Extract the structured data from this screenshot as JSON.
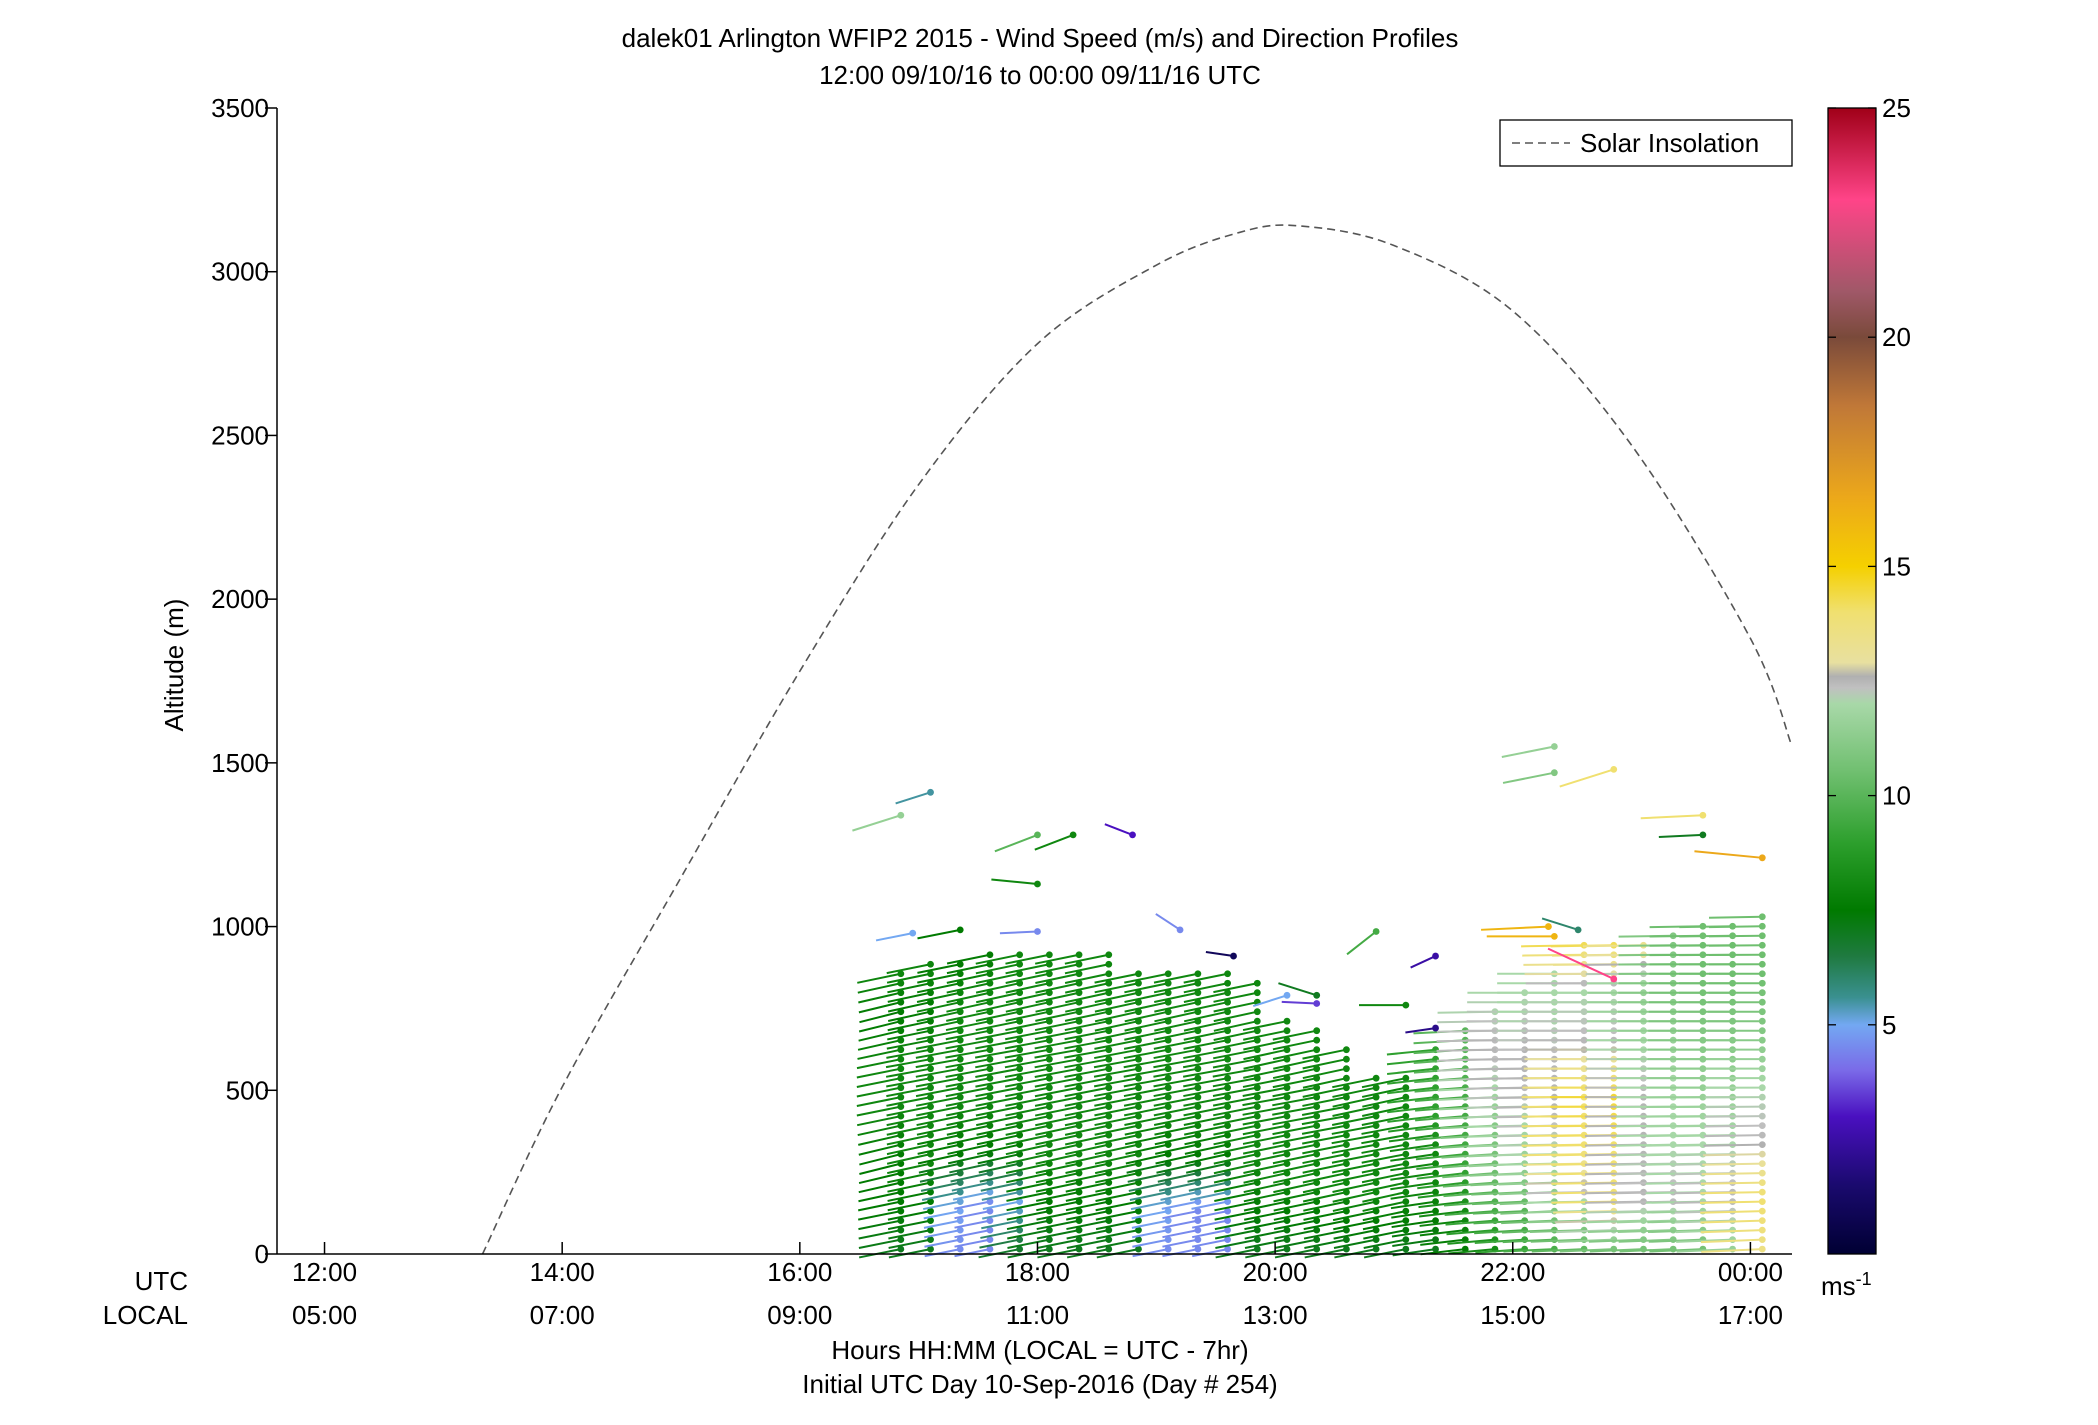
{
  "chart_data": {
    "type": "wind_barb_profile",
    "title": "dalek01 Arlington WFIP2 2015 - Wind Speed (m/s) and Direction Profiles",
    "subtitle": "12:00 09/10/16 to 00:00 09/11/16  UTC",
    "ylabel": "Altitude (m)",
    "xlabel": "Hours HH:MM  (LOCAL = UTC - 7hr)",
    "xlabel2": "Initial UTC Day 10-Sep-2016 (Day # 254)",
    "utc_row_label": "UTC",
    "local_row_label": "LOCAL",
    "xlim_hours": [
      11.6,
      24.35
    ],
    "ylim": [
      0,
      3500
    ],
    "y_ticks": [
      0,
      500,
      1000,
      1500,
      2000,
      2500,
      3000,
      3500
    ],
    "x_ticks": [
      {
        "hour": 12,
        "utc": "12:00",
        "local": "05:00"
      },
      {
        "hour": 14,
        "utc": "14:00",
        "local": "07:00"
      },
      {
        "hour": 16,
        "utc": "16:00",
        "local": "09:00"
      },
      {
        "hour": 18,
        "utc": "18:00",
        "local": "11:00"
      },
      {
        "hour": 20,
        "utc": "20:00",
        "local": "13:00"
      },
      {
        "hour": 22,
        "utc": "22:00",
        "local": "15:00"
      },
      {
        "hour": 24,
        "utc": "00:00",
        "local": "17:00"
      }
    ],
    "legend": {
      "label": "Solar Insolation",
      "placement": "top-right",
      "line_style": "dashed",
      "color": "#555555"
    },
    "solar_insolation_curve": [
      [
        13.33,
        0
      ],
      [
        14.0,
        510
      ],
      [
        15.0,
        1150
      ],
      [
        16.0,
        1780
      ],
      [
        17.0,
        2350
      ],
      [
        18.0,
        2780
      ],
      [
        19.0,
        3020
      ],
      [
        19.7,
        3120
      ],
      [
        20.2,
        3140
      ],
      [
        21.0,
        3080
      ],
      [
        22.0,
        2880
      ],
      [
        23.0,
        2470
      ],
      [
        24.0,
        1880
      ],
      [
        24.35,
        1550
      ]
    ],
    "colorbar": {
      "range": [
        0,
        25
      ],
      "ticks": [
        5,
        10,
        15,
        20,
        25
      ],
      "unit_label": "ms",
      "unit_exponent": "-1",
      "stops": [
        [
          0,
          "#000033"
        ],
        [
          1.5,
          "#1a0a6e"
        ],
        [
          3,
          "#4a10c0"
        ],
        [
          4,
          "#7a6ae8"
        ],
        [
          5,
          "#73a8f2"
        ],
        [
          5.6,
          "#3a9090"
        ],
        [
          6.5,
          "#1f7a40"
        ],
        [
          7.5,
          "#007a00"
        ],
        [
          9,
          "#2ea02e"
        ],
        [
          10.5,
          "#6fbf6f"
        ],
        [
          12,
          "#a8d8a8"
        ],
        [
          12.35,
          "#c0c0c0"
        ],
        [
          12.6,
          "#b0b0b0"
        ],
        [
          12.9,
          "#e8e0a0"
        ],
        [
          14,
          "#f0e070"
        ],
        [
          15,
          "#f5d000"
        ],
        [
          16.5,
          "#eca81a"
        ],
        [
          18.5,
          "#c07838"
        ],
        [
          20,
          "#7a4a3a"
        ],
        [
          21,
          "#a05868"
        ],
        [
          23,
          "#ff4488"
        ],
        [
          25,
          "#a00018"
        ]
      ]
    },
    "profiles": [
      {
        "t": 16.85,
        "top": 880,
        "speed": [
          7.0,
          7.5,
          7.5,
          8.0,
          8.0,
          7.5,
          8.0
        ],
        "dir": [
          250,
          250,
          245,
          250,
          250,
          245,
          250
        ]
      },
      {
        "t": 17.1,
        "top": 900,
        "speed": [
          7.0,
          7.5,
          8.0,
          8.0,
          8.0,
          7.5,
          8.0
        ],
        "dir": [
          250,
          250,
          248,
          250,
          252,
          248,
          250
        ]
      },
      {
        "t": 17.35,
        "top": 900,
        "speed": [
          4.5,
          5.0,
          7.5,
          8.0,
          8.0,
          8.0,
          7.5
        ],
        "dir": [
          250,
          250,
          248,
          250,
          252,
          248,
          250
        ]
      },
      {
        "t": 17.6,
        "top": 940,
        "speed": [
          4.5,
          4.5,
          7.5,
          8.0,
          8.0,
          8.0,
          7.5
        ],
        "dir": [
          250,
          250,
          248,
          250,
          252,
          248,
          250
        ]
      },
      {
        "t": 17.85,
        "top": 940,
        "speed": [
          7.0,
          5.0,
          7.5,
          8.0,
          8.0,
          8.0,
          8.0
        ],
        "dir": [
          250,
          250,
          248,
          250,
          252,
          248,
          250
        ]
      },
      {
        "t": 18.1,
        "top": 940,
        "speed": [
          7.0,
          7.5,
          8.0,
          8.0,
          8.0,
          8.0,
          8.0
        ],
        "dir": [
          250,
          250,
          248,
          250,
          252,
          248,
          250
        ]
      },
      {
        "t": 18.35,
        "top": 940,
        "speed": [
          7.0,
          7.5,
          8.0,
          8.0,
          8.0,
          8.0,
          8.0
        ],
        "dir": [
          250,
          250,
          248,
          250,
          252,
          248,
          250
        ]
      },
      {
        "t": 18.6,
        "top": 940,
        "speed": [
          7.0,
          7.5,
          8.0,
          8.0,
          8.0,
          8.0,
          8.0
        ],
        "dir": [
          250,
          250,
          248,
          250,
          252,
          248,
          250
        ]
      },
      {
        "t": 18.85,
        "top": 880,
        "speed": [
          7.0,
          7.5,
          8.0,
          8.0,
          8.0,
          8.0,
          8.0
        ],
        "dir": [
          250,
          250,
          248,
          250,
          252,
          248,
          250
        ]
      },
      {
        "t": 19.1,
        "top": 880,
        "speed": [
          4.5,
          5.0,
          7.5,
          8.0,
          8.0,
          8.0,
          8.0
        ],
        "dir": [
          250,
          250,
          248,
          250,
          252,
          248,
          250
        ]
      },
      {
        "t": 19.35,
        "top": 880,
        "speed": [
          4.5,
          4.5,
          7.5,
          8.0,
          8.0,
          8.0,
          8.0
        ],
        "dir": [
          250,
          250,
          248,
          250,
          252,
          248,
          250
        ]
      },
      {
        "t": 19.6,
        "top": 880,
        "speed": [
          4.5,
          4.5,
          7.5,
          8.0,
          8.0,
          8.0,
          8.0
        ],
        "dir": [
          250,
          250,
          248,
          250,
          252,
          248,
          250
        ]
      },
      {
        "t": 19.85,
        "top": 850,
        "speed": [
          7.0,
          7.5,
          8.0,
          8.0,
          8.0,
          8.0,
          8.0
        ],
        "dir": [
          250,
          250,
          248,
          250,
          252,
          248,
          250
        ]
      },
      {
        "t": 20.1,
        "top": 720,
        "speed": [
          7.0,
          7.5,
          8.0,
          8.0,
          8.0,
          8.0,
          8.0
        ],
        "dir": [
          250,
          250,
          248,
          250,
          252,
          248,
          250
        ]
      },
      {
        "t": 20.35,
        "top": 700,
        "speed": [
          7.0,
          7.5,
          8.0,
          8.0,
          8.0,
          8.0,
          8.0
        ],
        "dir": [
          250,
          250,
          248,
          250,
          252,
          248,
          250
        ]
      },
      {
        "t": 20.6,
        "top": 640,
        "speed": [
          7.0,
          7.5,
          8.0,
          8.0,
          8.0,
          8.0,
          8.0
        ],
        "dir": [
          250,
          250,
          248,
          250,
          252,
          248,
          250
        ]
      },
      {
        "t": 20.85,
        "top": 560,
        "speed": [
          7.0,
          7.5,
          8.0,
          8.0,
          8.0,
          8.0,
          8.0
        ],
        "dir": [
          250,
          250,
          248,
          250,
          252,
          248,
          250
        ]
      },
      {
        "t": 21.1,
        "top": 560,
        "speed": [
          7.0,
          7.5,
          8.0,
          8.0,
          8.0,
          8.0,
          8.0
        ],
        "dir": [
          250,
          250,
          248,
          250,
          252,
          248,
          250
        ]
      },
      {
        "t": 21.35,
        "top": 640,
        "speed": [
          7.0,
          7.5,
          8.0,
          8.0,
          9.0,
          9.0,
          9.0
        ],
        "dir": [
          255,
          255,
          255,
          255,
          258,
          258,
          260
        ]
      },
      {
        "t": 21.6,
        "top": 700,
        "speed": [
          7.5,
          8.0,
          9.0,
          9.5,
          9.5,
          10.0,
          10.0
        ],
        "dir": [
          258,
          258,
          258,
          260,
          262,
          262,
          265
        ]
      },
      {
        "t": 21.85,
        "top": 760,
        "speed": [
          8.0,
          9.5,
          10.5,
          11.0,
          12.0,
          12.5,
          12.0
        ],
        "dir": [
          260,
          262,
          262,
          265,
          265,
          268,
          268
        ]
      },
      {
        "t": 22.1,
        "top": 800,
        "speed": [
          9.0,
          10.0,
          11.5,
          12.0,
          12.5,
          12.5,
          12.0
        ],
        "dir": [
          262,
          265,
          265,
          268,
          268,
          270,
          270
        ]
      },
      {
        "t": 22.35,
        "top": 880,
        "speed": [
          9.5,
          11.0,
          12.0,
          12.5,
          12.5,
          12.0,
          12.0
        ],
        "dir": [
          265,
          265,
          268,
          268,
          270,
          270,
          270
        ]
      },
      {
        "t": 22.6,
        "top": 960,
        "speed": [
          10.0,
          12.0,
          14.0,
          14.0,
          12.5,
          12.0,
          14.5
        ],
        "dir": [
          265,
          268,
          268,
          270,
          270,
          270,
          268
        ]
      },
      {
        "t": 22.85,
        "top": 960,
        "speed": [
          10.5,
          14.0,
          14.0,
          14.5,
          12.5,
          12.0,
          14.5
        ],
        "dir": [
          265,
          268,
          268,
          270,
          270,
          270,
          268
        ]
      },
      {
        "t": 23.1,
        "top": 960,
        "speed": [
          10.5,
          12.5,
          12.5,
          12.5,
          12.0,
          11.5,
          13.5
        ],
        "dir": [
          265,
          268,
          268,
          270,
          270,
          270,
          268
        ]
      },
      {
        "t": 23.35,
        "top": 1000,
        "speed": [
          10.5,
          12.5,
          12.0,
          12.0,
          11.5,
          11.0,
          11.0
        ],
        "dir": [
          265,
          268,
          268,
          270,
          270,
          270,
          268
        ]
      },
      {
        "t": 23.6,
        "top": 1020,
        "speed": [
          10.5,
          12.0,
          12.0,
          11.5,
          11.0,
          10.5,
          10.5
        ],
        "dir": [
          265,
          268,
          268,
          270,
          270,
          270,
          268
        ]
      },
      {
        "t": 23.85,
        "top": 1020,
        "speed": [
          11.5,
          12.5,
          12.0,
          11.5,
          11.0,
          10.5,
          10.5
        ],
        "dir": [
          265,
          268,
          268,
          270,
          270,
          270,
          268
        ]
      },
      {
        "t": 24.1,
        "top": 1030,
        "speed": [
          13.5,
          14.0,
          12.5,
          12.0,
          11.0,
          10.5,
          10.5
        ],
        "dir": [
          265,
          268,
          268,
          270,
          270,
          270,
          268
        ]
      }
    ],
    "scattered_barbs": [
      {
        "t": 16.85,
        "alt": 1340,
        "speed": 11.5,
        "dir": 240
      },
      {
        "t": 17.1,
        "alt": 1410,
        "speed": 5.5,
        "dir": 240
      },
      {
        "t": 16.95,
        "alt": 980,
        "speed": 5.0,
        "dir": 250
      },
      {
        "t": 17.35,
        "alt": 990,
        "speed": 7.5,
        "dir": 250
      },
      {
        "t": 18.0,
        "alt": 1280,
        "speed": 10.0,
        "dir": 235
      },
      {
        "t": 18.3,
        "alt": 1280,
        "speed": 8.0,
        "dir": 235
      },
      {
        "t": 18.0,
        "alt": 1130,
        "speed": 8.0,
        "dir": 280
      },
      {
        "t": 18.0,
        "alt": 985,
        "speed": 4.5,
        "dir": 265
      },
      {
        "t": 18.8,
        "alt": 1280,
        "speed": 3.0,
        "dir": 305
      },
      {
        "t": 19.2,
        "alt": 990,
        "speed": 4.5,
        "dir": 320
      },
      {
        "t": 19.65,
        "alt": 910,
        "speed": 1.0,
        "dir": 285
      },
      {
        "t": 20.1,
        "alt": 790,
        "speed": 5.0,
        "dir": 240
      },
      {
        "t": 20.35,
        "alt": 790,
        "speed": 7.0,
        "dir": 300
      },
      {
        "t": 20.35,
        "alt": 765,
        "speed": 3.5,
        "dir": 275
      },
      {
        "t": 20.85,
        "alt": 985,
        "speed": 9.5,
        "dir": 215
      },
      {
        "t": 21.1,
        "alt": 760,
        "speed": 8.0,
        "dir": 270
      },
      {
        "t": 21.35,
        "alt": 910,
        "speed": 2.5,
        "dir": 230
      },
      {
        "t": 21.35,
        "alt": 690,
        "speed": 2.0,
        "dir": 255
      },
      {
        "t": 22.35,
        "alt": 1550,
        "speed": 11.5,
        "dir": 250
      },
      {
        "t": 22.35,
        "alt": 1470,
        "speed": 11.0,
        "dir": 250
      },
      {
        "t": 22.85,
        "alt": 1480,
        "speed": 14.0,
        "dir": 240
      },
      {
        "t": 22.3,
        "alt": 1000,
        "speed": 16.0,
        "dir": 265
      },
      {
        "t": 22.35,
        "alt": 970,
        "speed": 16.0,
        "dir": 270
      },
      {
        "t": 22.55,
        "alt": 990,
        "speed": 6.0,
        "dir": 300
      },
      {
        "t": 22.85,
        "alt": 840,
        "speed": 23.0,
        "dir": 310
      },
      {
        "t": 23.6,
        "alt": 1340,
        "speed": 14.0,
        "dir": 265
      },
      {
        "t": 23.6,
        "alt": 1280,
        "speed": 7.0,
        "dir": 265
      },
      {
        "t": 24.1,
        "alt": 1210,
        "speed": 16.5,
        "dir": 280
      }
    ]
  }
}
